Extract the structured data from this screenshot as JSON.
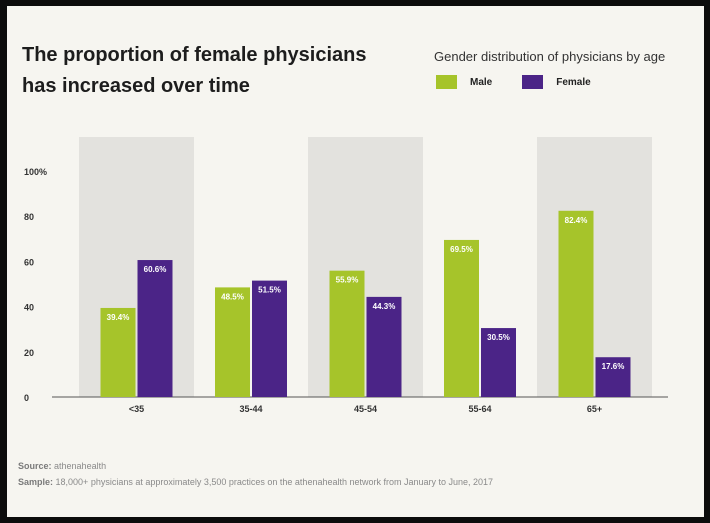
{
  "title": "The proportion of female physicians has increased over time",
  "legend_title": "Gender distribution of physicians by age",
  "colors": {
    "male": "#a6c42a",
    "female": "#4b2487",
    "band": "#e3e2de",
    "axis": "#555555",
    "label_text": "#ffffff",
    "tick_text": "#333333"
  },
  "footer": {
    "source_label": "Source:",
    "source_text": "athenahealth",
    "sample_label": "Sample:",
    "sample_text": "18,000+ physicians at approximately 3,500 practices on the athenahealth network from January to June, 2017"
  },
  "chart_data": {
    "type": "bar",
    "title": "The proportion of female physicians has increased over time",
    "categories": [
      "<35",
      "35-44",
      "45-54",
      "55-64",
      "65+"
    ],
    "series": [
      {
        "name": "Male",
        "values": [
          39.4,
          48.5,
          55.9,
          69.5,
          82.4
        ],
        "labels": [
          "39.4%",
          "48.5%",
          "55.9%",
          "69.5%",
          "82.4%"
        ]
      },
      {
        "name": "Female",
        "values": [
          60.6,
          51.5,
          44.3,
          30.5,
          17.6
        ],
        "labels": [
          "60.6%",
          "51.5%",
          "44.3%",
          "30.5%",
          "17.6%"
        ]
      }
    ],
    "y_ticks": [
      0,
      20,
      40,
      60,
      80,
      100
    ],
    "y_tick_labels": [
      "0",
      "20",
      "40",
      "60",
      "80",
      "100%"
    ],
    "ylim": [
      0,
      100
    ],
    "xlabel": "",
    "ylabel": "",
    "legend_position": "top-right",
    "shaded_categories": [
      0,
      2,
      4
    ]
  }
}
